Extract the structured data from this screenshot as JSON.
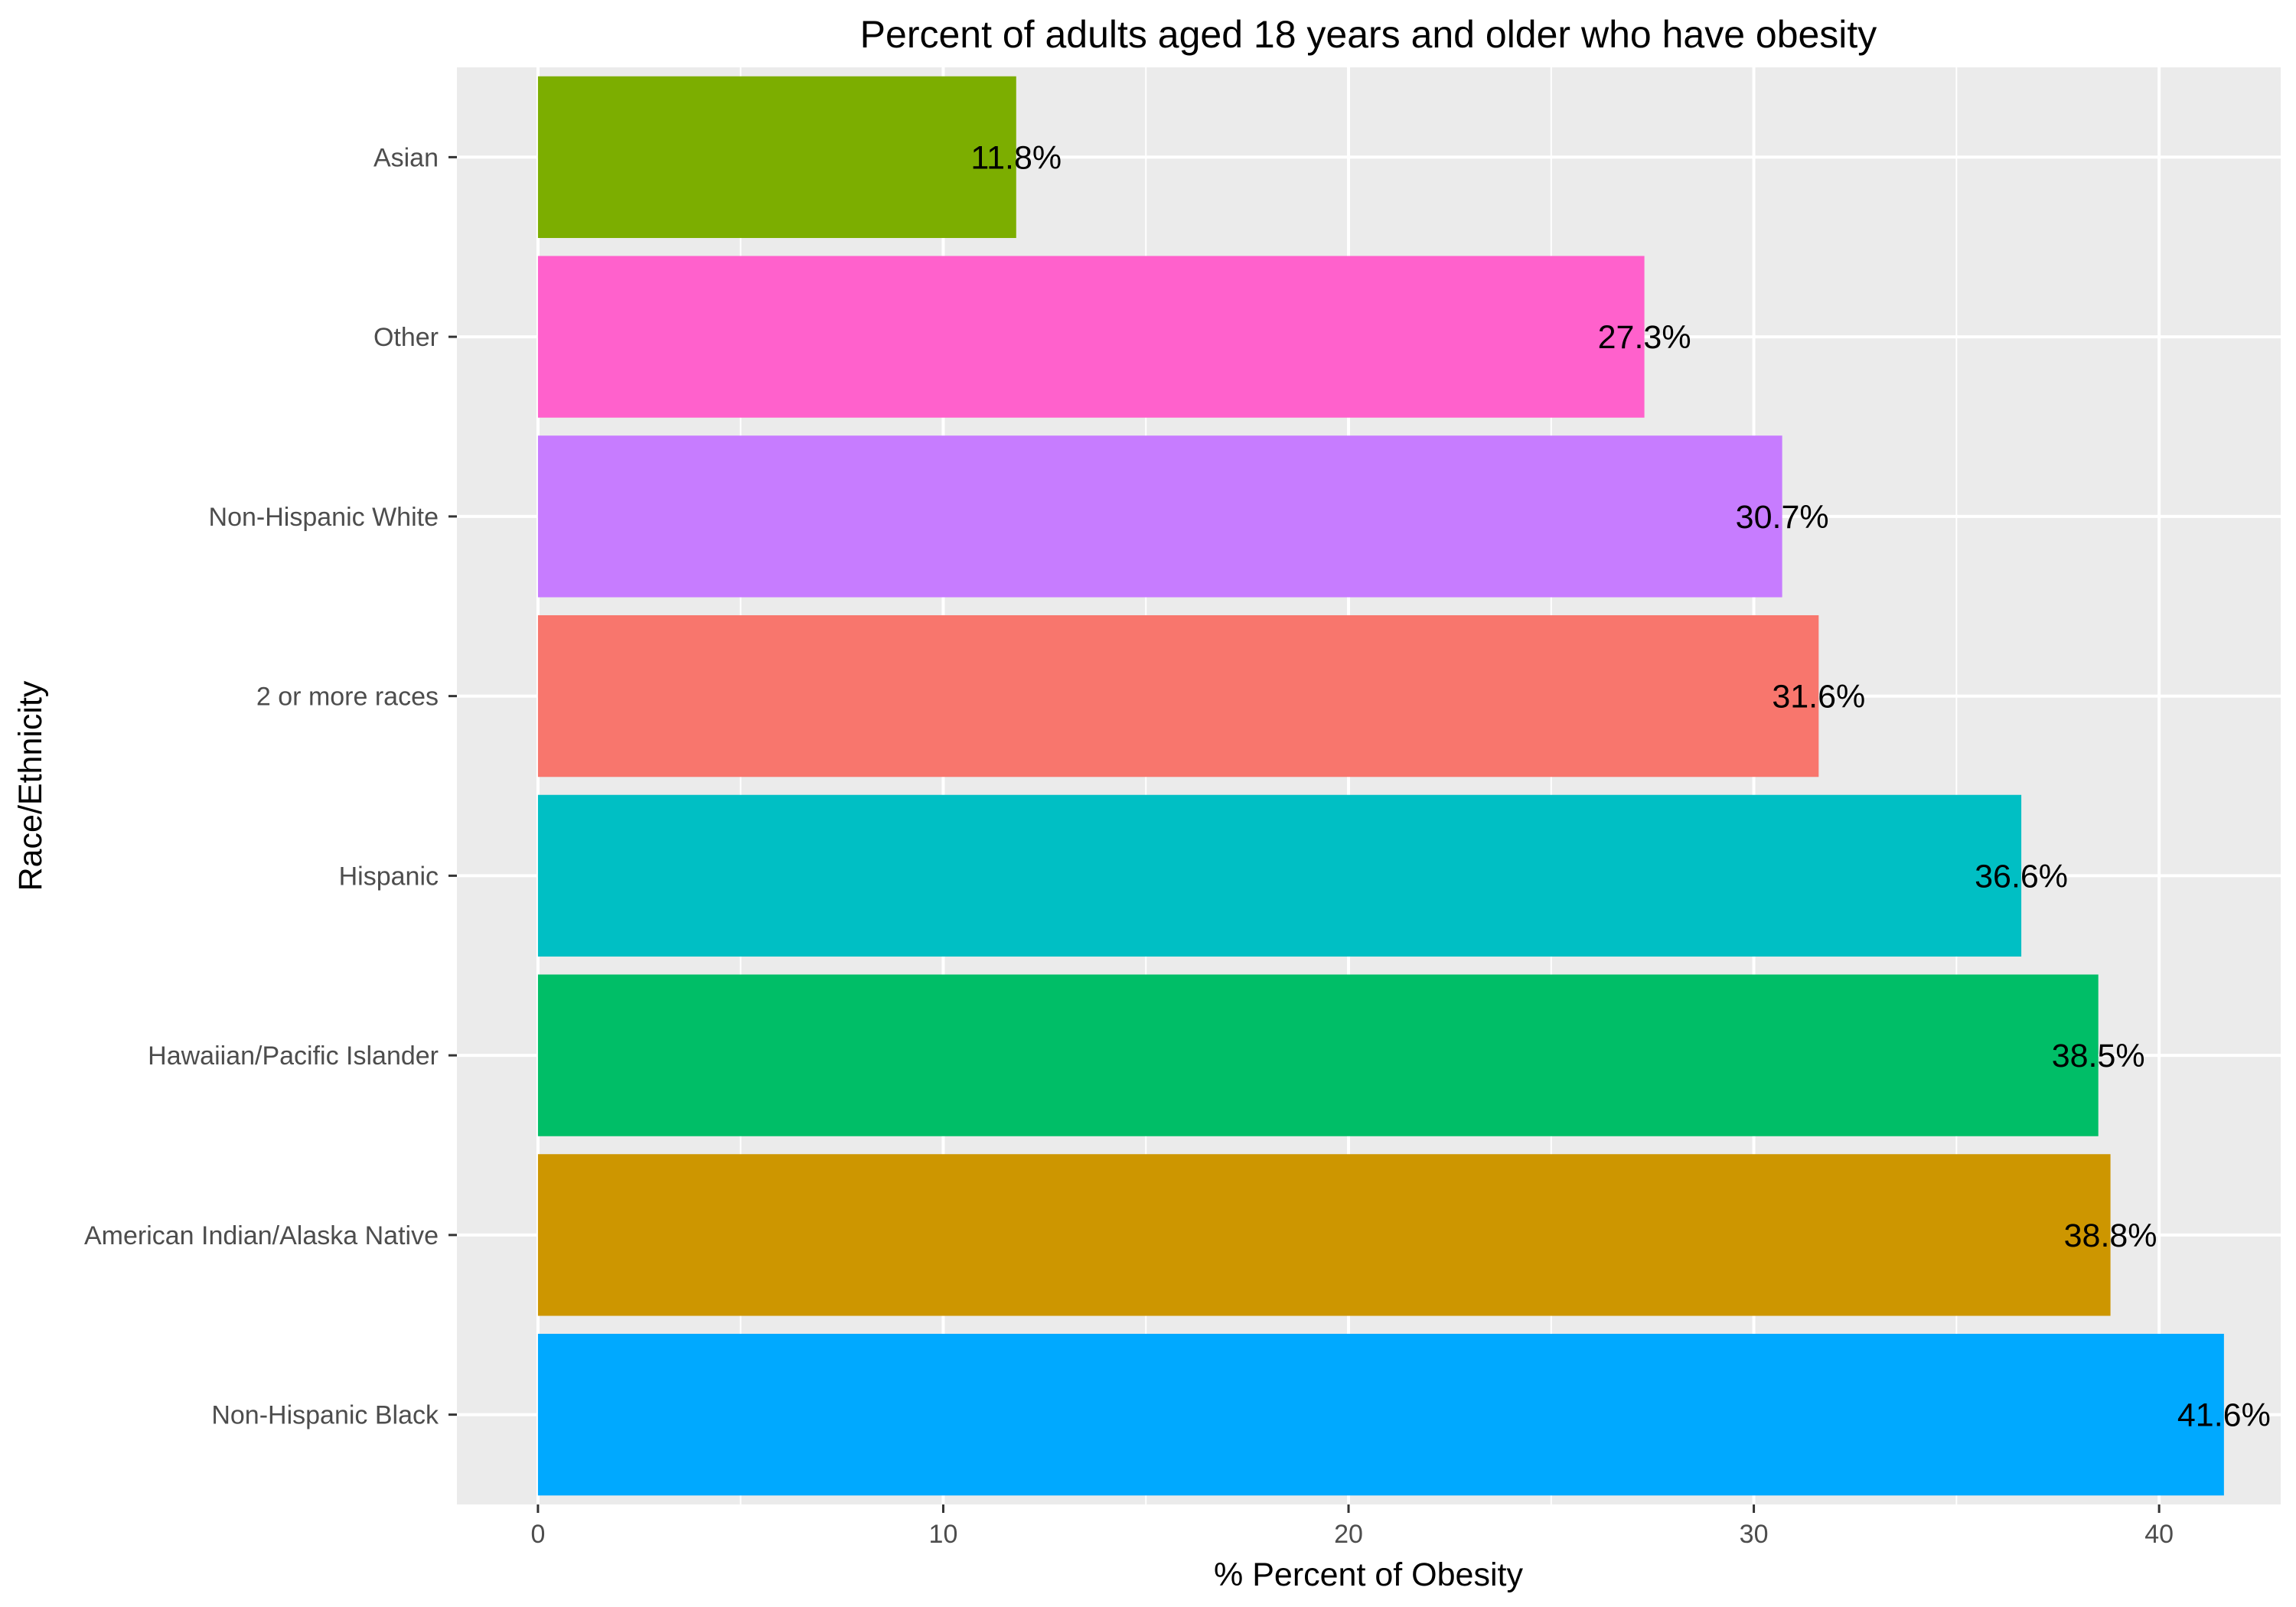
{
  "chart_data": {
    "type": "bar",
    "orientation": "horizontal",
    "title": "Percent of adults aged 18 years and older who have obesity",
    "xlabel": "% Percent of Obesity",
    "ylabel": "Race/Ethnicity",
    "xlim": [
      -2,
      43
    ],
    "x_ticks": [
      0,
      10,
      20,
      30,
      40
    ],
    "grid": true,
    "categories": [
      "Asian",
      "Other",
      "Non-Hispanic White",
      "2 or more races",
      "Hispanic",
      "Hawaiian/Pacific Islander",
      "American Indian/Alaska Native",
      "Non-Hispanic Black"
    ],
    "values": [
      11.8,
      27.3,
      30.7,
      31.6,
      36.6,
      38.5,
      38.8,
      41.6
    ],
    "labels": [
      "11.8%",
      "27.3%",
      "30.7%",
      "31.6%",
      "36.6%",
      "38.5%",
      "38.8%",
      "41.6%"
    ],
    "colors": [
      "#7CAE00",
      "#FF61CC",
      "#C77CFF",
      "#F8766D",
      "#00BFC4",
      "#00BE67",
      "#CD9600",
      "#00A9FF"
    ],
    "panel_background": "#EBEBEB",
    "grid_color": "#FFFFFF"
  }
}
